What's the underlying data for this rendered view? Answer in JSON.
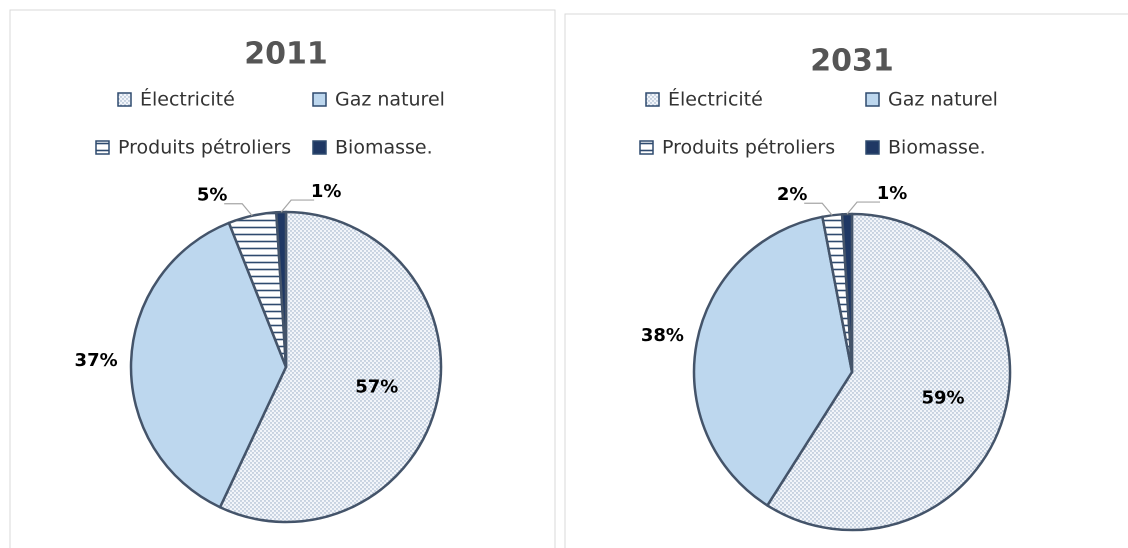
{
  "chart_data": [
    {
      "type": "pie",
      "title": "2011",
      "categories": [
        "Électricité",
        "Gaz naturel",
        "Produits pétroliers",
        "Biomasse."
      ],
      "values": [
        57,
        37,
        5,
        1
      ],
      "value_labels": [
        "57%",
        "37%",
        "5%",
        "1%"
      ],
      "colors": [
        "#dce6f2",
        "#bdd7ee",
        "#ffffff",
        "#1f3864"
      ],
      "patterns": [
        "dots",
        "none",
        "hstripes",
        "none"
      ]
    },
    {
      "type": "pie",
      "title": "2031",
      "categories": [
        "Électricité",
        "Gaz naturel",
        "Produits pétroliers",
        "Biomasse."
      ],
      "values": [
        59,
        38,
        2,
        1
      ],
      "value_labels": [
        "59%",
        "38%",
        "2%",
        "1%"
      ],
      "colors": [
        "#dce6f2",
        "#bdd7ee",
        "#ffffff",
        "#1f3864"
      ],
      "patterns": [
        "dots",
        "none",
        "hstripes",
        "none"
      ]
    }
  ]
}
